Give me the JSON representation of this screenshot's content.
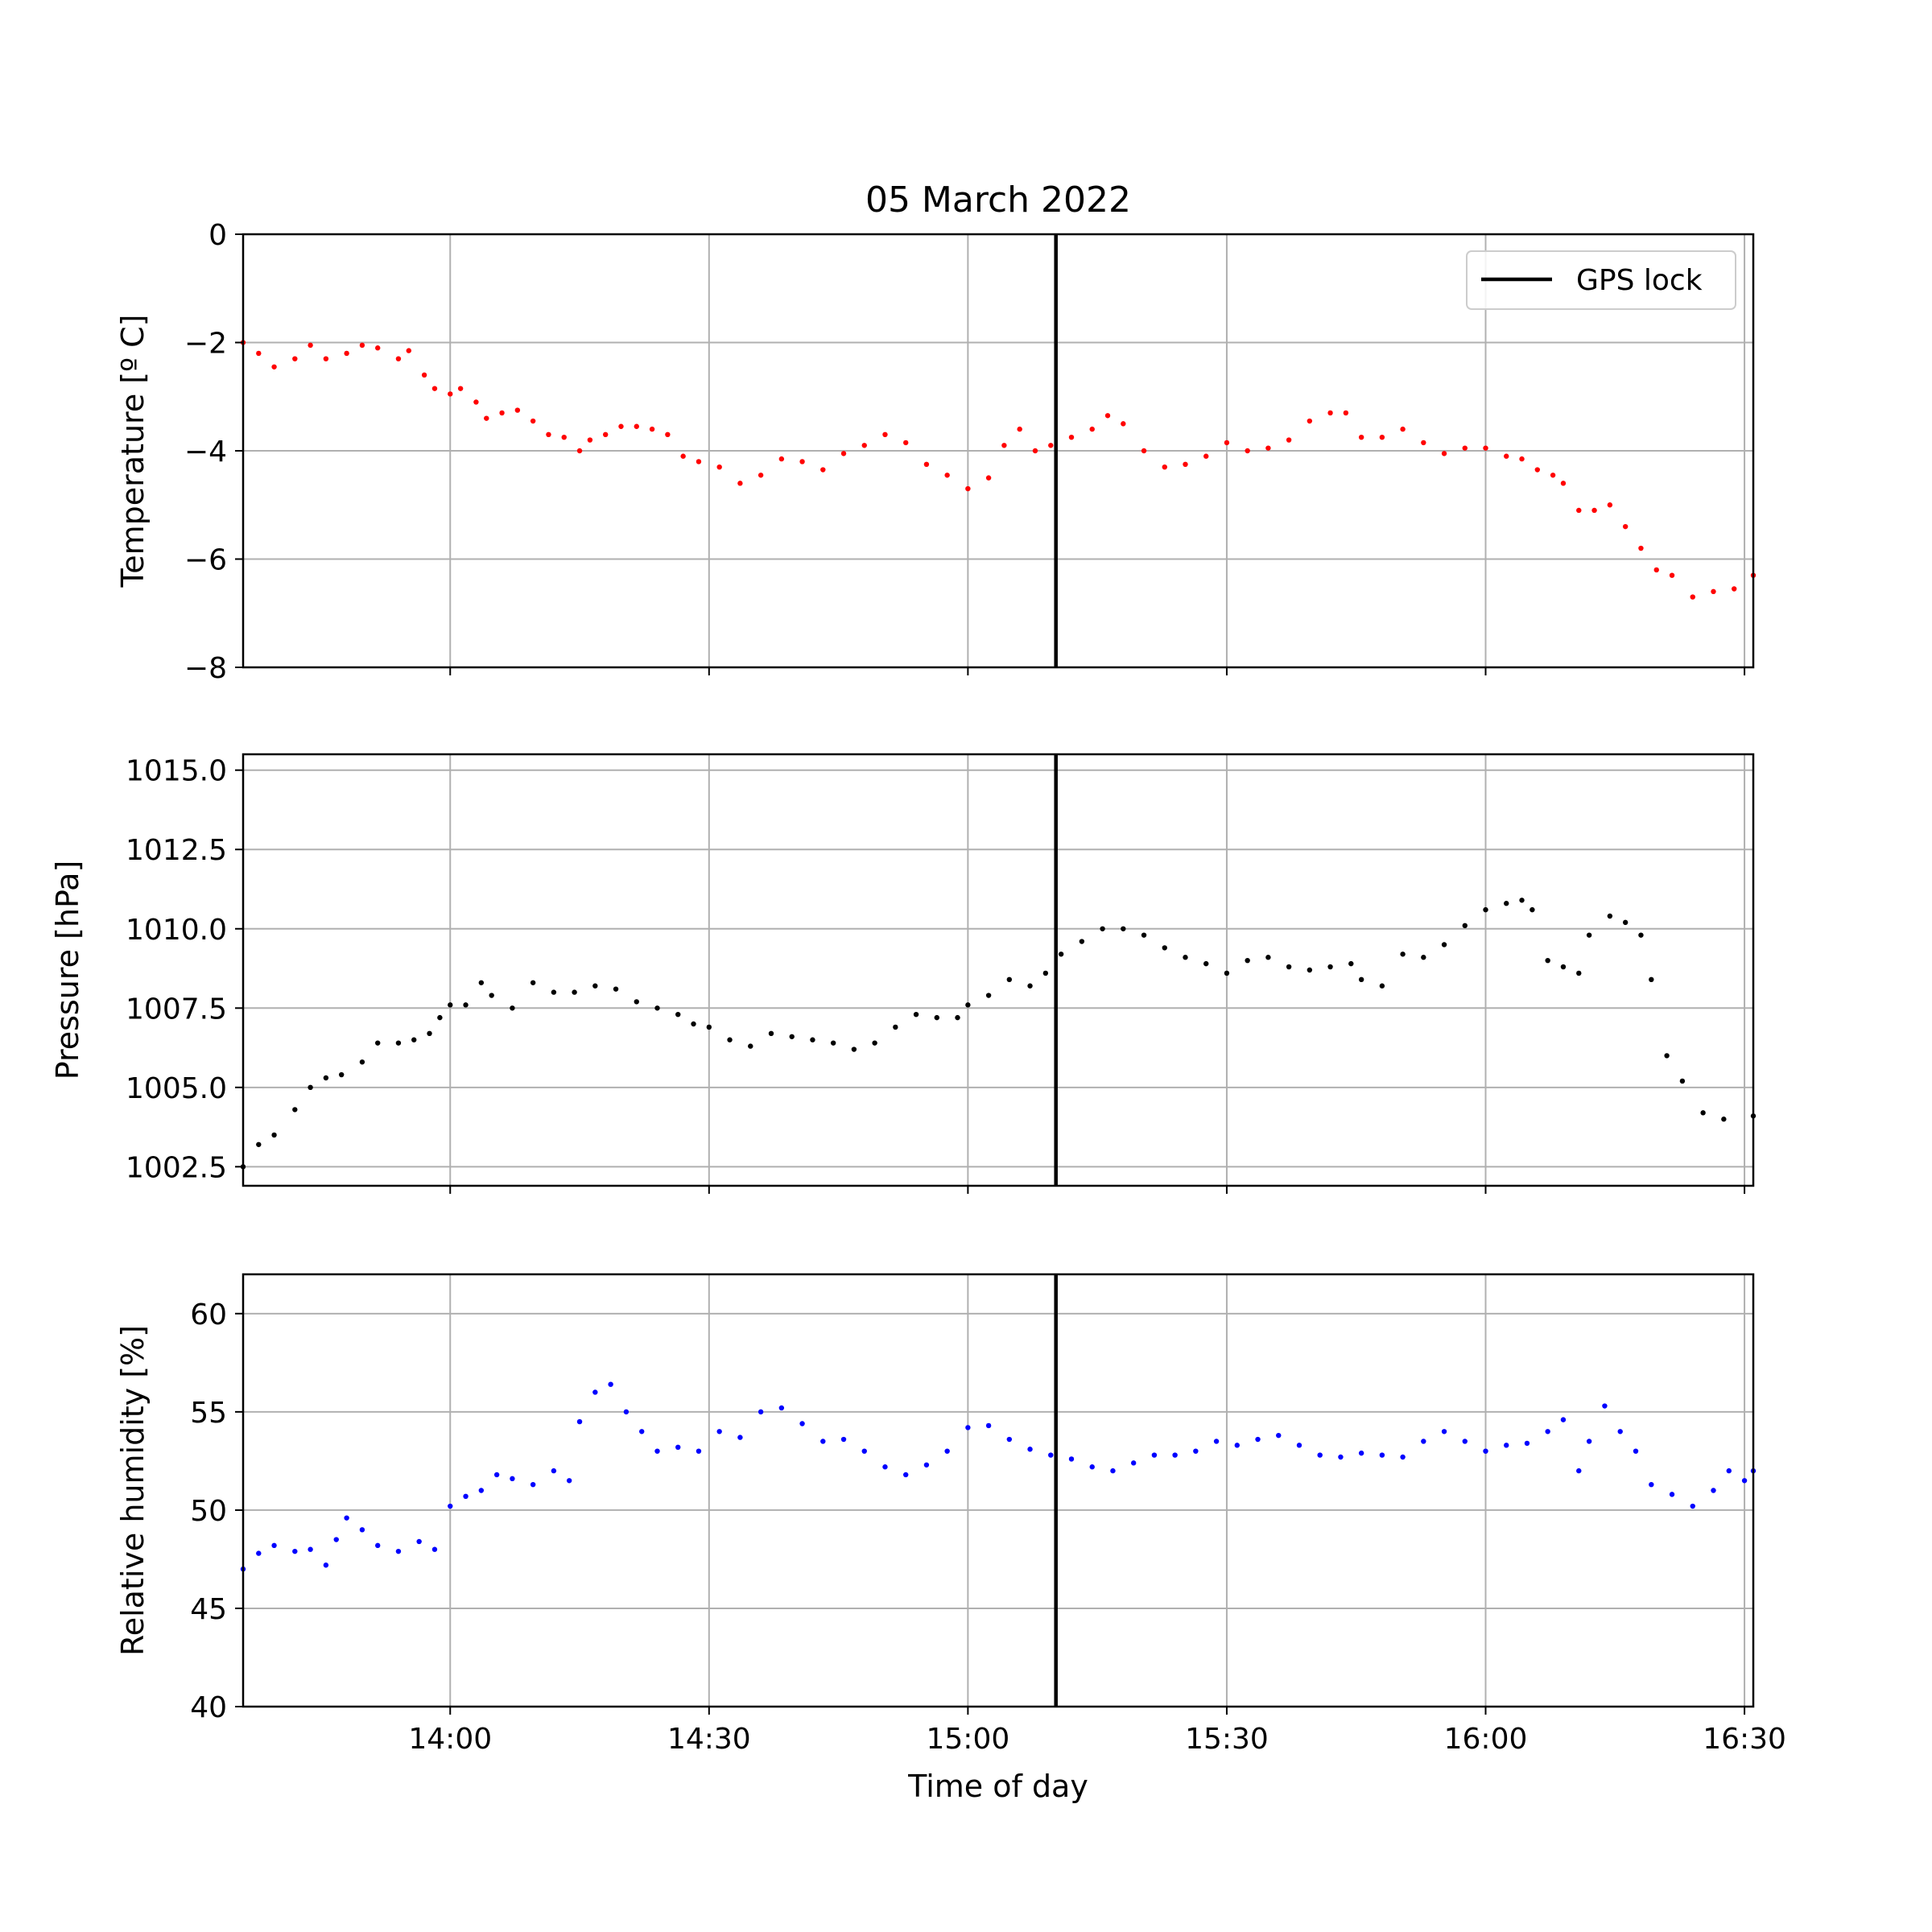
{
  "chart_data": {
    "type": "scatter",
    "title": "05 March 2022",
    "xlabel": "Time of day",
    "x_unit": "hours of day",
    "xlim": [
      13.6,
      16.517
    ],
    "x_ticks": [
      {
        "value": 14.0,
        "label": "14:00"
      },
      {
        "value": 14.5,
        "label": "14:30"
      },
      {
        "value": 15.0,
        "label": "15:00"
      },
      {
        "value": 15.5,
        "label": "15:30"
      },
      {
        "value": 16.0,
        "label": "16:00"
      },
      {
        "value": 16.5,
        "label": "16:30"
      }
    ],
    "grid": true,
    "reference_line": {
      "x": 15.17,
      "label": "GPS lock",
      "color": "#000000"
    },
    "legend": {
      "placement": "top-right",
      "panel": "temperature",
      "entries": [
        "GPS lock"
      ]
    },
    "panels": [
      {
        "id": "temperature",
        "ylabel": "Temperature [º C]",
        "ylim": [
          -8,
          0
        ],
        "y_ticks": [
          {
            "value": 0,
            "label": "0"
          },
          {
            "value": -2,
            "label": "−2"
          },
          {
            "value": -4,
            "label": "−4"
          },
          {
            "value": -6,
            "label": "−6"
          },
          {
            "value": -8,
            "label": "−8"
          }
        ],
        "color": "#ff0000",
        "points": [
          [
            13.6,
            -2.0
          ],
          [
            13.63,
            -2.2
          ],
          [
            13.66,
            -2.45
          ],
          [
            13.7,
            -2.3
          ],
          [
            13.73,
            -2.05
          ],
          [
            13.76,
            -2.3
          ],
          [
            13.8,
            -2.2
          ],
          [
            13.83,
            -2.05
          ],
          [
            13.86,
            -2.1
          ],
          [
            13.9,
            -2.3
          ],
          [
            13.92,
            -2.15
          ],
          [
            13.95,
            -2.6
          ],
          [
            13.97,
            -2.85
          ],
          [
            14.0,
            -2.95
          ],
          [
            14.02,
            -2.85
          ],
          [
            14.05,
            -3.1
          ],
          [
            14.07,
            -3.4
          ],
          [
            14.1,
            -3.3
          ],
          [
            14.13,
            -3.25
          ],
          [
            14.16,
            -3.45
          ],
          [
            14.19,
            -3.7
          ],
          [
            14.22,
            -3.75
          ],
          [
            14.25,
            -4.0
          ],
          [
            14.27,
            -3.8
          ],
          [
            14.3,
            -3.7
          ],
          [
            14.33,
            -3.55
          ],
          [
            14.36,
            -3.55
          ],
          [
            14.39,
            -3.6
          ],
          [
            14.42,
            -3.7
          ],
          [
            14.45,
            -4.1
          ],
          [
            14.48,
            -4.2
          ],
          [
            14.52,
            -4.3
          ],
          [
            14.56,
            -4.6
          ],
          [
            14.6,
            -4.45
          ],
          [
            14.64,
            -4.15
          ],
          [
            14.68,
            -4.2
          ],
          [
            14.72,
            -4.35
          ],
          [
            14.76,
            -4.05
          ],
          [
            14.8,
            -3.9
          ],
          [
            14.84,
            -3.7
          ],
          [
            14.88,
            -3.85
          ],
          [
            14.92,
            -4.25
          ],
          [
            14.96,
            -4.45
          ],
          [
            15.0,
            -4.7
          ],
          [
            15.04,
            -4.5
          ],
          [
            15.07,
            -3.9
          ],
          [
            15.1,
            -3.6
          ],
          [
            15.13,
            -4.0
          ],
          [
            15.16,
            -3.9
          ],
          [
            15.2,
            -3.75
          ],
          [
            15.24,
            -3.6
          ],
          [
            15.27,
            -3.35
          ],
          [
            15.3,
            -3.5
          ],
          [
            15.34,
            -4.0
          ],
          [
            15.38,
            -4.3
          ],
          [
            15.42,
            -4.25
          ],
          [
            15.46,
            -4.1
          ],
          [
            15.5,
            -3.85
          ],
          [
            15.54,
            -4.0
          ],
          [
            15.58,
            -3.95
          ],
          [
            15.62,
            -3.8
          ],
          [
            15.66,
            -3.45
          ],
          [
            15.7,
            -3.3
          ],
          [
            15.73,
            -3.3
          ],
          [
            15.76,
            -3.75
          ],
          [
            15.8,
            -3.75
          ],
          [
            15.84,
            -3.6
          ],
          [
            15.88,
            -3.85
          ],
          [
            15.92,
            -4.05
          ],
          [
            15.96,
            -3.95
          ],
          [
            16.0,
            -3.95
          ],
          [
            16.04,
            -4.1
          ],
          [
            16.07,
            -4.15
          ],
          [
            16.1,
            -4.35
          ],
          [
            16.13,
            -4.45
          ],
          [
            16.15,
            -4.6
          ],
          [
            16.18,
            -5.1
          ],
          [
            16.21,
            -5.1
          ],
          [
            16.24,
            -5.0
          ],
          [
            16.27,
            -5.4
          ],
          [
            16.3,
            -5.8
          ],
          [
            16.33,
            -6.2
          ],
          [
            16.36,
            -6.3
          ],
          [
            16.4,
            -6.7
          ],
          [
            16.44,
            -6.6
          ],
          [
            16.48,
            -6.55
          ],
          [
            16.517,
            -6.3
          ]
        ]
      },
      {
        "id": "pressure",
        "ylabel": "Pressure [hPa]",
        "ylim": [
          1001.9,
          1015.5
        ],
        "y_ticks": [
          {
            "value": 1002.5,
            "label": "1002.5"
          },
          {
            "value": 1005.0,
            "label": "1005.0"
          },
          {
            "value": 1007.5,
            "label": "1007.5"
          },
          {
            "value": 1010.0,
            "label": "1010.0"
          },
          {
            "value": 1012.5,
            "label": "1012.5"
          },
          {
            "value": 1015.0,
            "label": "1015.0"
          }
        ],
        "color": "#000000",
        "points": [
          [
            13.6,
            1002.5
          ],
          [
            13.63,
            1003.2
          ],
          [
            13.66,
            1003.5
          ],
          [
            13.7,
            1004.3
          ],
          [
            13.73,
            1005.0
          ],
          [
            13.76,
            1005.3
          ],
          [
            13.79,
            1005.4
          ],
          [
            13.83,
            1005.8
          ],
          [
            13.86,
            1006.4
          ],
          [
            13.9,
            1006.4
          ],
          [
            13.93,
            1006.5
          ],
          [
            13.96,
            1006.7
          ],
          [
            13.98,
            1007.2
          ],
          [
            14.0,
            1007.6
          ],
          [
            14.03,
            1007.6
          ],
          [
            14.06,
            1008.3
          ],
          [
            14.08,
            1007.9
          ],
          [
            14.12,
            1007.5
          ],
          [
            14.16,
            1008.3
          ],
          [
            14.2,
            1008.0
          ],
          [
            14.24,
            1008.0
          ],
          [
            14.28,
            1008.2
          ],
          [
            14.32,
            1008.1
          ],
          [
            14.36,
            1007.7
          ],
          [
            14.4,
            1007.5
          ],
          [
            14.44,
            1007.3
          ],
          [
            14.47,
            1007.0
          ],
          [
            14.5,
            1006.9
          ],
          [
            14.54,
            1006.5
          ],
          [
            14.58,
            1006.3
          ],
          [
            14.62,
            1006.7
          ],
          [
            14.66,
            1006.6
          ],
          [
            14.7,
            1006.5
          ],
          [
            14.74,
            1006.4
          ],
          [
            14.78,
            1006.2
          ],
          [
            14.82,
            1006.4
          ],
          [
            14.86,
            1006.9
          ],
          [
            14.9,
            1007.3
          ],
          [
            14.94,
            1007.2
          ],
          [
            14.98,
            1007.2
          ],
          [
            15.0,
            1007.6
          ],
          [
            15.04,
            1007.9
          ],
          [
            15.08,
            1008.4
          ],
          [
            15.12,
            1008.2
          ],
          [
            15.15,
            1008.6
          ],
          [
            15.18,
            1009.2
          ],
          [
            15.22,
            1009.6
          ],
          [
            15.26,
            1010.0
          ],
          [
            15.3,
            1010.0
          ],
          [
            15.34,
            1009.8
          ],
          [
            15.38,
            1009.4
          ],
          [
            15.42,
            1009.1
          ],
          [
            15.46,
            1008.9
          ],
          [
            15.5,
            1008.6
          ],
          [
            15.54,
            1009.0
          ],
          [
            15.58,
            1009.1
          ],
          [
            15.62,
            1008.8
          ],
          [
            15.66,
            1008.7
          ],
          [
            15.7,
            1008.8
          ],
          [
            15.74,
            1008.9
          ],
          [
            15.76,
            1008.4
          ],
          [
            15.8,
            1008.2
          ],
          [
            15.84,
            1009.2
          ],
          [
            15.88,
            1009.1
          ],
          [
            15.92,
            1009.5
          ],
          [
            15.96,
            1010.1
          ],
          [
            16.0,
            1010.6
          ],
          [
            16.04,
            1010.8
          ],
          [
            16.07,
            1010.9
          ],
          [
            16.09,
            1010.6
          ],
          [
            16.12,
            1009.0
          ],
          [
            16.15,
            1008.8
          ],
          [
            16.18,
            1008.6
          ],
          [
            16.2,
            1009.8
          ],
          [
            16.24,
            1010.4
          ],
          [
            16.27,
            1010.2
          ],
          [
            16.3,
            1009.8
          ],
          [
            16.32,
            1008.4
          ],
          [
            16.35,
            1006.0
          ],
          [
            16.38,
            1005.2
          ],
          [
            16.42,
            1004.2
          ],
          [
            16.46,
            1004.0
          ],
          [
            16.517,
            1004.1
          ]
        ]
      },
      {
        "id": "humidity",
        "ylabel": "Relative humidity [%]",
        "ylim": [
          40,
          62
        ],
        "y_ticks": [
          {
            "value": 40,
            "label": "40"
          },
          {
            "value": 45,
            "label": "45"
          },
          {
            "value": 50,
            "label": "50"
          },
          {
            "value": 55,
            "label": "55"
          },
          {
            "value": 60,
            "label": "60"
          }
        ],
        "color": "#0000ff",
        "points": [
          [
            13.6,
            47.0
          ],
          [
            13.63,
            47.8
          ],
          [
            13.66,
            48.2
          ],
          [
            13.7,
            47.9
          ],
          [
            13.73,
            48.0
          ],
          [
            13.76,
            47.2
          ],
          [
            13.78,
            48.5
          ],
          [
            13.8,
            49.6
          ],
          [
            13.83,
            49.0
          ],
          [
            13.86,
            48.2
          ],
          [
            13.9,
            47.9
          ],
          [
            13.94,
            48.4
          ],
          [
            13.97,
            48.0
          ],
          [
            14.0,
            50.2
          ],
          [
            14.03,
            50.7
          ],
          [
            14.06,
            51.0
          ],
          [
            14.09,
            51.8
          ],
          [
            14.12,
            51.6
          ],
          [
            14.16,
            51.3
          ],
          [
            14.2,
            52.0
          ],
          [
            14.23,
            51.5
          ],
          [
            14.25,
            54.5
          ],
          [
            14.28,
            56.0
          ],
          [
            14.31,
            56.4
          ],
          [
            14.34,
            55.0
          ],
          [
            14.37,
            54.0
          ],
          [
            14.4,
            53.0
          ],
          [
            14.44,
            53.2
          ],
          [
            14.48,
            53.0
          ],
          [
            14.52,
            54.0
          ],
          [
            14.56,
            53.7
          ],
          [
            14.6,
            55.0
          ],
          [
            14.64,
            55.2
          ],
          [
            14.68,
            54.4
          ],
          [
            14.72,
            53.5
          ],
          [
            14.76,
            53.6
          ],
          [
            14.8,
            53.0
          ],
          [
            14.84,
            52.2
          ],
          [
            14.88,
            51.8
          ],
          [
            14.92,
            52.3
          ],
          [
            14.96,
            53.0
          ],
          [
            15.0,
            54.2
          ],
          [
            15.04,
            54.3
          ],
          [
            15.08,
            53.6
          ],
          [
            15.12,
            53.1
          ],
          [
            15.16,
            52.8
          ],
          [
            15.2,
            52.6
          ],
          [
            15.24,
            52.2
          ],
          [
            15.28,
            52.0
          ],
          [
            15.32,
            52.4
          ],
          [
            15.36,
            52.8
          ],
          [
            15.4,
            52.8
          ],
          [
            15.44,
            53.0
          ],
          [
            15.48,
            53.5
          ],
          [
            15.52,
            53.3
          ],
          [
            15.56,
            53.6
          ],
          [
            15.6,
            53.8
          ],
          [
            15.64,
            53.3
          ],
          [
            15.68,
            52.8
          ],
          [
            15.72,
            52.7
          ],
          [
            15.76,
            52.9
          ],
          [
            15.8,
            52.8
          ],
          [
            15.84,
            52.7
          ],
          [
            15.88,
            53.5
          ],
          [
            15.92,
            54.0
          ],
          [
            15.96,
            53.5
          ],
          [
            16.0,
            53.0
          ],
          [
            16.04,
            53.3
          ],
          [
            16.08,
            53.4
          ],
          [
            16.12,
            54.0
          ],
          [
            16.15,
            54.6
          ],
          [
            16.18,
            52.0
          ],
          [
            16.2,
            53.5
          ],
          [
            16.23,
            55.3
          ],
          [
            16.26,
            54.0
          ],
          [
            16.29,
            53.0
          ],
          [
            16.32,
            51.3
          ],
          [
            16.36,
            50.8
          ],
          [
            16.4,
            50.2
          ],
          [
            16.44,
            51.0
          ],
          [
            16.47,
            52.0
          ],
          [
            16.5,
            51.5
          ],
          [
            16.517,
            52.0
          ]
        ]
      }
    ]
  }
}
